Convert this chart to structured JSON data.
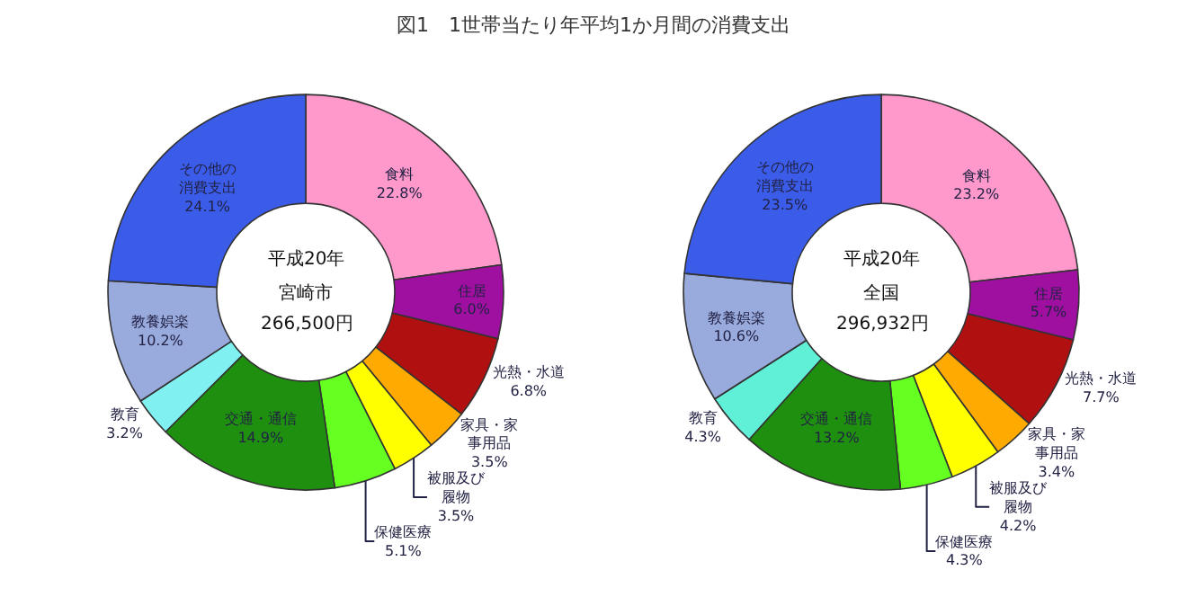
{
  "chart_data": [
    {
      "type": "donut",
      "title": "図1　1世帯当たり年平均1か月間の消費支出",
      "categories": [
        "食料",
        "住居",
        "光熱・水道",
        "家具・家事用品",
        "被服及び履物",
        "保健医療",
        "交通・通信",
        "教育",
        "教養娯楽",
        "その他の消費支出"
      ],
      "values": [
        22.8,
        6.0,
        6.8,
        3.5,
        3.5,
        5.1,
        14.9,
        3.2,
        10.2,
        24.1
      ],
      "value_labels": [
        "22.8%",
        "6.0%",
        "6.8%",
        "3.5%",
        "3.5%",
        "5.1%",
        "14.9%",
        "3.2%",
        "10.2%",
        "24.1%"
      ],
      "colors": [
        "#ff99cc",
        "#a010a0",
        "#b01010",
        "#ffaa00",
        "#ffff00",
        "#66ff22",
        "#1f8f0f",
        "#80f0f0",
        "#99aadd",
        "#3a5ce8"
      ],
      "annotations": [
        "平成20年",
        "宮崎市",
        "266,500円"
      ]
    },
    {
      "type": "donut",
      "categories": [
        "食料",
        "住居",
        "光熱・水道",
        "家具・家事用品",
        "被服及び履物",
        "保健医療",
        "交通・通信",
        "教育",
        "教養娯楽",
        "その他の消費支出"
      ],
      "values": [
        23.2,
        5.7,
        7.7,
        3.4,
        4.2,
        4.3,
        13.2,
        4.3,
        10.6,
        23.5
      ],
      "value_labels": [
        "23.2%",
        "5.7%",
        "7.7%",
        "3.4%",
        "4.2%",
        "4.3%",
        "13.2%",
        "4.3%",
        "10.6%",
        "23.5%"
      ],
      "colors": [
        "#ff99cc",
        "#a010a0",
        "#b01010",
        "#ffaa00",
        "#ffff00",
        "#66ff22",
        "#1f8f0f",
        "#60f0d8",
        "#99aadd",
        "#3a5ce8"
      ],
      "annotations": [
        "平成20年",
        "全国",
        "296,932円"
      ]
    }
  ]
}
